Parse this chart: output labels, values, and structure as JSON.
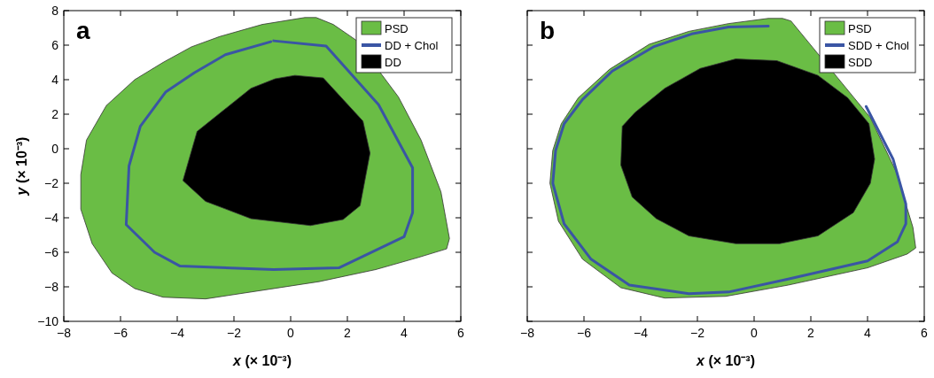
{
  "chart_data": [
    {
      "type": "area",
      "xlabel": "x (× 10⁻³)",
      "ylabel": "y (× 10⁻³)",
      "annotations": [
        "a"
      ],
      "legend": "top right",
      "xlim": [
        -8,
        6
      ],
      "ylim": [
        -10,
        8
      ],
      "xticks": [
        {
          "value": -8,
          "label": "−8"
        },
        {
          "value": -6,
          "label": "−6"
        },
        {
          "value": -4,
          "label": "−4"
        },
        {
          "value": -2,
          "label": "−2"
        },
        0,
        2,
        4,
        6
      ],
      "yticks": [
        {
          "value": -10,
          "label": "−10"
        },
        {
          "value": -8,
          "label": "−8"
        },
        {
          "value": -6,
          "label": "−6"
        },
        {
          "value": -4,
          "label": "−4"
        },
        {
          "value": -2,
          "label": "−2"
        },
        0,
        2,
        4,
        6,
        8
      ],
      "series": [
        {
          "name": "PSD",
          "color": "#6abd45",
          "x": [
            0.9,
            1.5,
            2.3,
            3.0,
            3.8,
            4.6,
            5.3,
            5.6,
            5.5,
            4.5,
            3.0,
            1.0,
            -1.0,
            -3.0,
            -4.5,
            -5.5,
            -6.3,
            -7.0,
            -7.4,
            -7.4,
            -7.2,
            -6.5,
            -5.5,
            -4.5,
            -3.5,
            -2.5,
            -1.0,
            0.5
          ],
          "values": [
            7.6,
            7.2,
            6.3,
            null,
            3.0,
            0.5,
            -2.5,
            -5.2,
            -5.8,
            -6.3,
            -7.0,
            -7.7,
            -8.2,
            -8.7,
            -8.6,
            -8.1,
            -7.2,
            -5.5,
            -3.5,
            -1.5,
            0.5,
            2.5,
            4.0,
            5.0,
            5.9,
            6.5,
            7.2,
            7.6
          ]
        },
        {
          "name": "DD + Chol",
          "type": "line",
          "color": "#3a55a4",
          "x": [
            -0.6,
            1.25,
            3.1,
            4.3,
            4.3,
            4.0,
            1.7,
            -0.6,
            -3.9,
            -4.8,
            -5.8,
            -5.7,
            -5.3,
            -4.4,
            -3.4,
            -2.3,
            -0.7
          ],
          "values": [
            6.25,
            5.95,
            2.55,
            -1.1,
            -3.7,
            -5.1,
            -6.9,
            -7.0,
            -6.8,
            -6.0,
            -4.4,
            -1.0,
            1.3,
            3.3,
            4.4,
            5.45,
            6.2
          ]
        },
        {
          "name": "DD",
          "color": "#000000",
          "x": [
            0.15,
            1.15,
            2.55,
            2.8,
            2.45,
            1.85,
            0.7,
            -1.4,
            -3.0,
            -3.8,
            -3.3,
            -1.4,
            -0.55
          ],
          "values": [
            4.25,
            4.1,
            1.6,
            -0.25,
            -3.3,
            -4.1,
            -4.45,
            -4.05,
            -3.05,
            -1.85,
            1.0,
            3.5,
            4.05
          ]
        }
      ]
    },
    {
      "type": "area",
      "xlabel": "x (× 10⁻³)",
      "annotations": [
        "b"
      ],
      "legend": "top right",
      "tick_labels": "x",
      "xlim": [
        -8,
        6
      ],
      "ylim": [
        -10,
        8
      ],
      "xticks": [
        {
          "value": -8,
          "label": "−8"
        },
        {
          "value": -6,
          "label": "−6"
        },
        {
          "value": -4,
          "label": "−4"
        },
        {
          "value": -2,
          "label": "−2"
        },
        0,
        2,
        4,
        6
      ],
      "yticks": [
        -10,
        -8,
        -6,
        -4,
        -2,
        0,
        2,
        4,
        6,
        8
      ],
      "series": [
        {
          "name": "PSD",
          "color": "#6abd45",
          "x": [
            1.0,
            1.3,
            2.25,
            3.2,
            4.1,
            5.0,
            5.6,
            5.7,
            5.4,
            4.0,
            1.2,
            -1.0,
            -3.15,
            -4.7,
            -6.05,
            -6.9,
            -7.2,
            -7.1,
            -6.8,
            -6.2,
            -5.1,
            -3.7,
            -2.3,
            -0.9,
            0.5
          ],
          "values": [
            7.55,
            7.4,
            null,
            null,
            1.8,
            -1.3,
            -4.55,
            -5.75,
            -6.1,
            -6.9,
            -7.9,
            -8.55,
            -8.65,
            -8.05,
            -6.4,
            -4.2,
            -2.0,
            -0.1,
            1.45,
            2.95,
            4.6,
            6.05,
            6.8,
            7.25,
            7.55
          ]
        },
        {
          "name": "SDD + Chol",
          "type": "line",
          "color": "#3a55a4",
          "x": [
            0.5,
            1.5,
            2.9,
            3.95,
            4.9,
            5.35,
            5.35,
            5.05,
            4.0,
            1.2,
            -0.9,
            -2.3,
            -4.4,
            -5.75,
            -6.7,
            -7.1,
            -7.0,
            -6.7,
            -6.05,
            -5.0,
            -3.55,
            -2.2,
            -0.9,
            0.5
          ],
          "values": [
            7.1,
            null,
            null,
            2.45,
            -0.6,
            -3.2,
            -4.35,
            -5.4,
            -6.5,
            -7.55,
            -8.3,
            -8.4,
            -7.9,
            -6.4,
            -4.35,
            -2.0,
            -0.1,
            1.45,
            2.85,
            4.5,
            5.9,
            6.65,
            7.05,
            7.1
          ]
        },
        {
          "name": "SDD",
          "color": "#000000",
          "x": [
            -0.65,
            0.8,
            2.25,
            3.3,
            4.05,
            4.25,
            4.1,
            3.5,
            2.25,
            0.9,
            -0.65,
            -2.3,
            -3.45,
            -4.3,
            -4.7,
            -4.65,
            -4.2,
            -3.15,
            -1.9
          ],
          "values": [
            5.2,
            5.1,
            4.25,
            2.95,
            1.45,
            -0.6,
            -2.0,
            -3.7,
            -5.05,
            -5.5,
            -5.5,
            -5.05,
            -4.05,
            -2.8,
            -0.95,
            1.3,
            2.1,
            3.5,
            4.65
          ]
        }
      ]
    }
  ]
}
